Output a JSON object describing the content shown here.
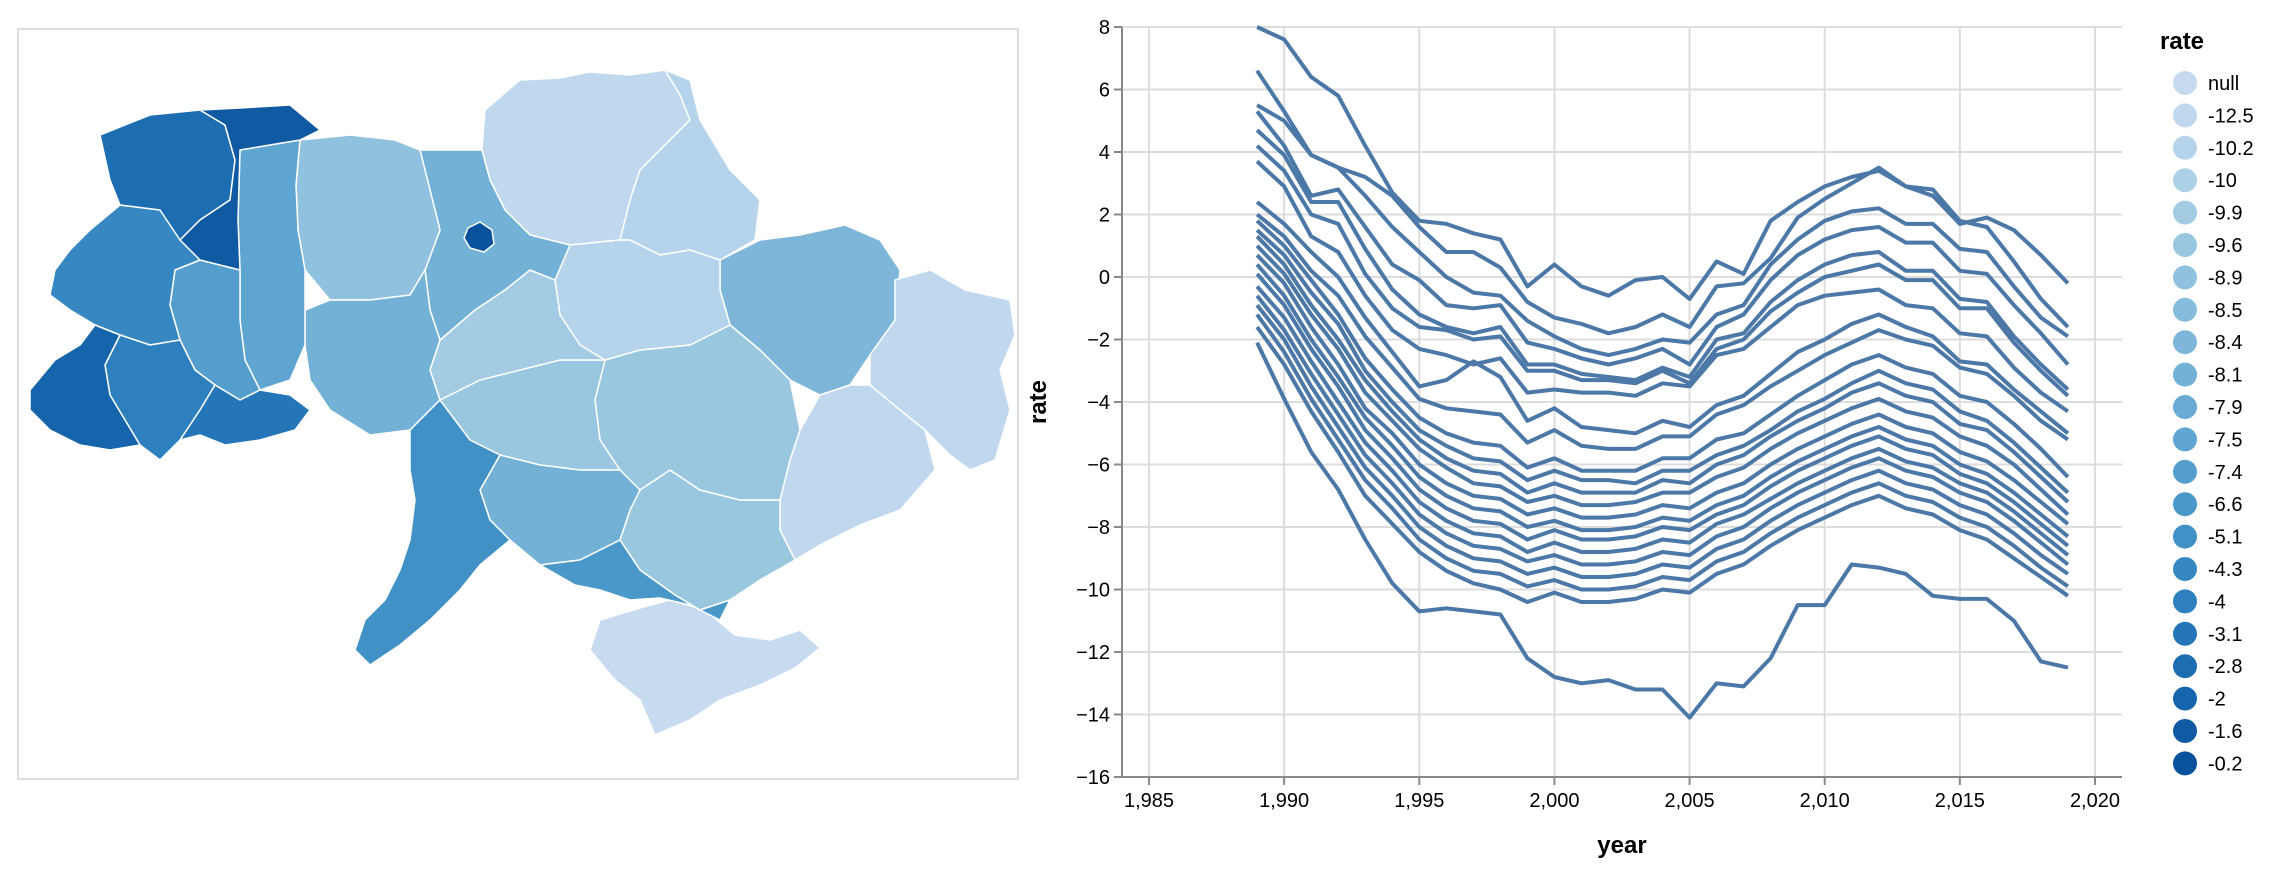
{
  "chart_data": [
    {
      "type": "choropleth-map",
      "colors": {
        "frame": "#dddddd",
        "region_border": "#ffffff",
        "scale": [
          "#c6dbef",
          "#9ecae1",
          "#6baed6",
          "#4292c6",
          "#2171b5",
          "#08519c"
        ]
      },
      "regions": [
        {
          "id": "chernihiv",
          "rate": -12.5
        },
        {
          "id": "sumy",
          "rate": -10.2
        },
        {
          "id": "kharkiv",
          "rate": -8.4
        },
        {
          "id": "luhansk",
          "rate": -12.5
        },
        {
          "id": "donetsk",
          "rate": -12.5
        },
        {
          "id": "crimea",
          "rate": null
        },
        {
          "id": "zaporizhzhia",
          "rate": -9.6
        },
        {
          "id": "dnipro",
          "rate": -9.6
        },
        {
          "id": "poltava",
          "rate": -10.2
        },
        {
          "id": "kirovohrad",
          "rate": -9.6
        },
        {
          "id": "cherkasy",
          "rate": -9.9
        },
        {
          "id": "kyiv-oblast",
          "rate": -8.1
        },
        {
          "id": "kyiv-city",
          "rate": -0.2
        },
        {
          "id": "zhytomyr",
          "rate": -8.9
        },
        {
          "id": "vinnytsia",
          "rate": -8.1
        },
        {
          "id": "mykolaiv",
          "rate": -8.1
        },
        {
          "id": "kherson",
          "rate": -6.6
        },
        {
          "id": "odesa",
          "rate": -5.1
        },
        {
          "id": "khmelnytskyi",
          "rate": -7.5
        },
        {
          "id": "ternopil",
          "rate": -7.4
        },
        {
          "id": "lviv",
          "rate": -4.3
        },
        {
          "id": "volyn",
          "rate": -2.8
        },
        {
          "id": "rivne",
          "rate": -1.6
        },
        {
          "id": "ivano-frankivsk",
          "rate": -4.0
        },
        {
          "id": "zakarpattia",
          "rate": -2.0
        },
        {
          "id": "chernivtsi",
          "rate": -3.1
        }
      ]
    },
    {
      "type": "line",
      "xlabel": "year",
      "ylabel": "rate",
      "xlim": [
        1984,
        2021
      ],
      "ylim": [
        -16,
        8
      ],
      "x_ticks": [
        1985,
        1990,
        1995,
        2000,
        2005,
        2010,
        2015,
        2020
      ],
      "x_tick_labels": [
        "1,985",
        "1,990",
        "1,995",
        "2,000",
        "2,005",
        "2,010",
        "2,015",
        "2,020"
      ],
      "y_ticks": [
        8,
        6,
        4,
        2,
        0,
        -2,
        -4,
        -6,
        -8,
        -10,
        -12,
        -14,
        -16
      ],
      "y_tick_labels": [
        "8",
        "6",
        "4",
        "2",
        "0",
        "−2",
        "−4",
        "−6",
        "−8",
        "−10",
        "−12",
        "−14",
        "−16"
      ],
      "grid": true,
      "line_color": "#4c78a8",
      "x": [
        1989,
        1990,
        1991,
        1992,
        1993,
        1994,
        1995,
        1996,
        1997,
        1998,
        1999,
        2000,
        2001,
        2002,
        2003,
        2004,
        2005,
        2006,
        2007,
        2008,
        2009,
        2010,
        2011,
        2012,
        2013,
        2014,
        2015,
        2016,
        2017,
        2018,
        2019
      ],
      "series": [
        {
          "values": [
            8.0,
            7.6,
            6.4,
            5.8,
            4.2,
            2.7,
            1.8,
            1.7,
            1.4,
            1.2,
            -0.3,
            0.4,
            -0.3,
            -0.6,
            -0.1,
            0.0,
            -0.7,
            0.5,
            0.1,
            1.8,
            2.4,
            2.9,
            3.2,
            3.4,
            2.9,
            2.6,
            1.7,
            1.9,
            1.5,
            0.7,
            -0.2
          ]
        },
        {
          "values": [
            6.6,
            5.3,
            3.9,
            3.5,
            3.2,
            2.6,
            1.6,
            0.8,
            0.8,
            0.3,
            -0.8,
            -1.3,
            -1.5,
            -1.8,
            -1.6,
            -1.2,
            -1.6,
            -0.3,
            -0.2,
            0.6,
            1.9,
            2.5,
            3.0,
            3.5,
            2.9,
            2.8,
            1.8,
            1.6,
            0.5,
            -0.7,
            -1.6
          ]
        },
        {
          "values": [
            5.5,
            5.0,
            3.9,
            3.5,
            2.6,
            1.6,
            0.8,
            0.0,
            -0.5,
            -0.6,
            -1.4,
            -1.9,
            -2.3,
            -2.5,
            -2.3,
            -2.0,
            -2.1,
            -1.2,
            -0.9,
            0.4,
            1.2,
            1.8,
            2.1,
            2.2,
            1.7,
            1.7,
            0.9,
            0.8,
            -0.3,
            -1.3,
            -1.9
          ]
        },
        {
          "values": [
            5.3,
            4.2,
            2.6,
            2.8,
            1.6,
            0.4,
            -0.1,
            -0.9,
            -1.0,
            -0.9,
            -2.1,
            -2.3,
            -2.6,
            -2.8,
            -2.6,
            -2.3,
            -2.8,
            -1.6,
            -1.2,
            -0.1,
            0.7,
            1.2,
            1.5,
            1.6,
            1.1,
            1.1,
            0.2,
            0.1,
            -0.9,
            -1.8,
            -2.8
          ]
        },
        {
          "values": [
            4.7,
            3.9,
            2.4,
            2.4,
            0.9,
            -0.4,
            -1.2,
            -1.6,
            -1.8,
            -1.6,
            -2.8,
            -2.8,
            -3.1,
            -3.2,
            -3.3,
            -2.9,
            -3.2,
            -2.0,
            -1.8,
            -0.8,
            -0.1,
            0.4,
            0.7,
            0.8,
            0.2,
            0.2,
            -0.7,
            -0.8,
            -1.9,
            -2.8,
            -3.6
          ]
        },
        {
          "values": [
            4.2,
            3.4,
            2.0,
            1.7,
            0.1,
            -1.0,
            -1.6,
            -1.7,
            -2.0,
            -1.9,
            -3.0,
            -3.0,
            -3.3,
            -3.3,
            -3.4,
            -3.0,
            -3.4,
            -2.3,
            -2.0,
            -1.1,
            -0.5,
            0.0,
            0.2,
            0.4,
            -0.1,
            -0.1,
            -1.0,
            -1.0,
            -2.1,
            -3.0,
            -3.8
          ]
        },
        {
          "values": [
            3.7,
            2.9,
            1.3,
            0.8,
            -0.6,
            -1.7,
            -2.3,
            -2.5,
            -2.8,
            -2.6,
            -3.7,
            -3.6,
            -3.7,
            -3.7,
            -3.8,
            -3.4,
            -3.5,
            -2.5,
            -2.3,
            -1.6,
            -0.9,
            -0.6,
            -0.5,
            -0.4,
            -0.9,
            -1.0,
            -1.8,
            -1.9,
            -2.9,
            -3.7,
            -4.3
          ]
        },
        {
          "values": [
            2.4,
            1.7,
            0.8,
            0.0,
            -1.3,
            -2.4,
            -3.5,
            -3.3,
            -2.7,
            -3.2,
            -4.6,
            -4.2,
            -4.8,
            -4.9,
            -5.0,
            -4.6,
            -4.8,
            -4.1,
            -3.8,
            -3.1,
            -2.4,
            -2.0,
            -1.5,
            -1.2,
            -1.6,
            -1.9,
            -2.7,
            -2.8,
            -3.6,
            -4.3,
            -5.0
          ]
        },
        {
          "values": [
            2.0,
            1.3,
            0.2,
            -0.6,
            -1.9,
            -2.9,
            -3.9,
            -4.2,
            -4.3,
            -4.4,
            -5.3,
            -4.9,
            -5.4,
            -5.5,
            -5.5,
            -5.1,
            -5.1,
            -4.4,
            -4.1,
            -3.5,
            -3.0,
            -2.5,
            -2.1,
            -1.7,
            -2.0,
            -2.2,
            -2.9,
            -3.1,
            -3.8,
            -4.6,
            -5.2
          ]
        },
        {
          "values": [
            1.8,
            1.0,
            -0.1,
            -1.2,
            -2.6,
            -3.6,
            -4.5,
            -5.0,
            -5.3,
            -5.4,
            -6.1,
            -5.8,
            -6.2,
            -6.2,
            -6.2,
            -5.8,
            -5.8,
            -5.2,
            -5.0,
            -4.4,
            -3.8,
            -3.3,
            -2.8,
            -2.5,
            -2.9,
            -3.1,
            -3.8,
            -4.0,
            -4.7,
            -5.5,
            -6.4
          ]
        },
        {
          "values": [
            1.5,
            0.7,
            -0.5,
            -1.5,
            -3.0,
            -4.0,
            -4.9,
            -5.4,
            -5.8,
            -5.9,
            -6.5,
            -6.2,
            -6.5,
            -6.5,
            -6.6,
            -6.2,
            -6.2,
            -5.7,
            -5.4,
            -4.9,
            -4.3,
            -3.9,
            -3.4,
            -3.0,
            -3.4,
            -3.6,
            -4.3,
            -4.6,
            -5.3,
            -6.1,
            -6.9
          ]
        },
        {
          "values": [
            1.3,
            0.4,
            -0.9,
            -2.0,
            -3.3,
            -4.3,
            -5.2,
            -5.8,
            -6.2,
            -6.3,
            -6.9,
            -6.6,
            -6.9,
            -6.9,
            -6.9,
            -6.5,
            -6.6,
            -6.0,
            -5.7,
            -5.1,
            -4.6,
            -4.2,
            -3.7,
            -3.4,
            -3.8,
            -4.0,
            -4.7,
            -4.9,
            -5.6,
            -6.4,
            -7.2
          ]
        },
        {
          "values": [
            1.0,
            0.1,
            -1.2,
            -2.3,
            -3.7,
            -4.6,
            -5.5,
            -6.1,
            -6.6,
            -6.7,
            -7.2,
            -7.0,
            -7.3,
            -7.3,
            -7.2,
            -6.9,
            -6.9,
            -6.4,
            -6.1,
            -5.5,
            -5.0,
            -4.6,
            -4.2,
            -3.9,
            -4.3,
            -4.5,
            -5.1,
            -5.4,
            -6.0,
            -6.8,
            -7.6
          ]
        },
        {
          "values": [
            0.7,
            -0.2,
            -1.6,
            -2.8,
            -4.2,
            -5.0,
            -6.0,
            -6.6,
            -7.0,
            -7.1,
            -7.6,
            -7.4,
            -7.7,
            -7.7,
            -7.6,
            -7.3,
            -7.4,
            -6.9,
            -6.6,
            -6.0,
            -5.5,
            -5.1,
            -4.7,
            -4.4,
            -4.8,
            -5.0,
            -5.6,
            -5.9,
            -6.5,
            -7.2,
            -7.9
          ]
        },
        {
          "values": [
            0.4,
            -0.6,
            -2.0,
            -3.2,
            -4.5,
            -5.4,
            -6.4,
            -7.0,
            -7.4,
            -7.5,
            -8.0,
            -7.8,
            -8.1,
            -8.1,
            -8.0,
            -7.7,
            -7.8,
            -7.3,
            -7.0,
            -6.4,
            -5.9,
            -5.5,
            -5.1,
            -4.8,
            -5.2,
            -5.4,
            -6.0,
            -6.3,
            -6.9,
            -7.6,
            -8.3
          ]
        },
        {
          "values": [
            0.1,
            -0.9,
            -2.3,
            -3.5,
            -4.9,
            -5.8,
            -6.8,
            -7.4,
            -7.8,
            -7.9,
            -8.4,
            -8.1,
            -8.4,
            -8.4,
            -8.3,
            -8.0,
            -8.1,
            -7.6,
            -7.3,
            -6.7,
            -6.2,
            -5.8,
            -5.4,
            -5.1,
            -5.5,
            -5.7,
            -6.3,
            -6.6,
            -7.2,
            -7.9,
            -8.6
          ]
        },
        {
          "values": [
            -0.3,
            -1.3,
            -2.7,
            -4.0,
            -5.3,
            -6.2,
            -7.2,
            -7.8,
            -8.2,
            -8.3,
            -8.8,
            -8.5,
            -8.8,
            -8.8,
            -8.7,
            -8.4,
            -8.5,
            -7.9,
            -7.6,
            -7.1,
            -6.6,
            -6.2,
            -5.8,
            -5.5,
            -5.9,
            -6.1,
            -6.6,
            -6.9,
            -7.5,
            -8.2,
            -8.9
          ]
        },
        {
          "values": [
            -0.6,
            -1.7,
            -3.1,
            -4.4,
            -5.7,
            -6.6,
            -7.6,
            -8.2,
            -8.6,
            -8.7,
            -9.1,
            -8.9,
            -9.2,
            -9.2,
            -9.1,
            -8.8,
            -8.9,
            -8.3,
            -8.0,
            -7.4,
            -6.9,
            -6.5,
            -6.1,
            -5.8,
            -6.2,
            -6.4,
            -6.9,
            -7.2,
            -7.8,
            -8.5,
            -9.2
          ]
        },
        {
          "values": [
            -0.9,
            -2.0,
            -3.5,
            -4.8,
            -6.1,
            -7.0,
            -8.0,
            -8.6,
            -9.0,
            -9.1,
            -9.5,
            -9.3,
            -9.6,
            -9.6,
            -9.5,
            -9.2,
            -9.3,
            -8.7,
            -8.4,
            -7.8,
            -7.3,
            -6.9,
            -6.5,
            -6.2,
            -6.6,
            -6.8,
            -7.3,
            -7.6,
            -8.2,
            -8.9,
            -9.5
          ]
        },
        {
          "values": [
            -1.2,
            -2.4,
            -3.9,
            -5.2,
            -6.5,
            -7.4,
            -8.4,
            -9.0,
            -9.4,
            -9.5,
            -9.9,
            -9.7,
            -10.0,
            -10.0,
            -9.9,
            -9.6,
            -9.7,
            -9.1,
            -8.8,
            -8.2,
            -7.7,
            -7.3,
            -6.9,
            -6.6,
            -7.0,
            -7.2,
            -7.7,
            -8.0,
            -8.6,
            -9.3,
            -9.9
          ]
        },
        {
          "values": [
            -1.6,
            -2.8,
            -4.3,
            -5.6,
            -7.0,
            -7.9,
            -8.8,
            -9.4,
            -9.8,
            -10.0,
            -10.4,
            -10.1,
            -10.4,
            -10.4,
            -10.3,
            -10.0,
            -10.1,
            -9.5,
            -9.2,
            -8.6,
            -8.1,
            -7.7,
            -7.3,
            -7.0,
            -7.4,
            -7.6,
            -8.1,
            -8.4,
            -9.0,
            -9.6,
            -10.2
          ]
        },
        {
          "values": [
            -2.1,
            -3.9,
            -5.6,
            -6.8,
            -8.4,
            -9.8,
            -10.7,
            -10.6,
            -10.7,
            -10.8,
            -12.2,
            -12.8,
            -13.0,
            -12.9,
            -13.2,
            -13.2,
            -14.1,
            -13.0,
            -13.1,
            -12.2,
            -10.5,
            -10.5,
            -9.2,
            -9.3,
            -9.5,
            -10.2,
            -10.3,
            -10.3,
            -11.0,
            -12.3,
            -12.5
          ]
        }
      ]
    }
  ],
  "legend": {
    "title": "rate",
    "items": [
      {
        "label": "null",
        "color": "#c6dbef"
      },
      {
        "label": "-12.5",
        "color": "#bfd8ed"
      },
      {
        "label": "-10.2",
        "color": "#b5d3ea"
      },
      {
        "label": "-10",
        "color": "#acd0e6"
      },
      {
        "label": "-9.9",
        "color": "#a3cbe3"
      },
      {
        "label": "-9.6",
        "color": "#9ac7e0"
      },
      {
        "label": "-8.9",
        "color": "#90c1de"
      },
      {
        "label": "-8.5",
        "color": "#86bcdb"
      },
      {
        "label": "-8.4",
        "color": "#7db6d8"
      },
      {
        "label": "-8.1",
        "color": "#73b1d6"
      },
      {
        "label": "-7.9",
        "color": "#69abd4"
      },
      {
        "label": "-7.5",
        "color": "#5ea5d1"
      },
      {
        "label": "-7.4",
        "color": "#549ecd"
      },
      {
        "label": "-6.6",
        "color": "#4a98c9"
      },
      {
        "label": "-5.1",
        "color": "#4191c6"
      },
      {
        "label": "-4.3",
        "color": "#3788c2"
      },
      {
        "label": "-4",
        "color": "#2d7fbd"
      },
      {
        "label": "-3.1",
        "color": "#2576b8"
      },
      {
        "label": "-2.8",
        "color": "#1d6db2"
      },
      {
        "label": "-2",
        "color": "#1664ab"
      },
      {
        "label": "-1.6",
        "color": "#0f5aa3"
      },
      {
        "label": "-0.2",
        "color": "#08519c"
      }
    ]
  }
}
